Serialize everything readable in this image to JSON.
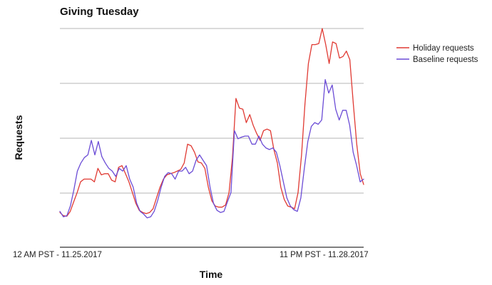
{
  "chart_data": {
    "type": "line",
    "title": "Giving Tuesday",
    "xlabel": "Time",
    "ylabel": "Requests",
    "x_tick_labels": [
      "12 AM PST - 11.25.2017",
      "11 PM PST - 11.28.2017"
    ],
    "grid": true,
    "grid_lines": 4,
    "legend_position": "right",
    "y_range": [
      0,
      4
    ],
    "series": [
      {
        "name": "Holiday requests",
        "color": "#e03a33",
        "values": [
          0.58,
          0.52,
          0.51,
          0.6,
          0.78,
          0.95,
          1.15,
          1.2,
          1.2,
          1.2,
          1.15,
          1.4,
          1.28,
          1.3,
          1.3,
          1.18,
          1.15,
          1.42,
          1.45,
          1.3,
          1.15,
          0.95,
          0.75,
          0.62,
          0.58,
          0.56,
          0.58,
          0.65,
          0.85,
          1.05,
          1.2,
          1.28,
          1.3,
          1.32,
          1.35,
          1.38,
          1.5,
          1.85,
          1.82,
          1.7,
          1.52,
          1.5,
          1.4,
          1.05,
          0.8,
          0.7,
          0.68,
          0.68,
          0.72,
          0.95,
          1.6,
          2.7,
          2.52,
          2.5,
          2.25,
          2.4,
          2.2,
          2.05,
          1.92,
          2.1,
          2.13,
          2.1,
          1.75,
          1.5,
          1.05,
          0.82,
          0.7,
          0.68,
          0.65,
          0.95,
          1.65,
          2.6,
          3.35,
          3.7,
          3.7,
          3.72,
          4.0,
          3.7,
          3.35,
          3.75,
          3.72,
          3.45,
          3.48,
          3.58,
          3.42,
          2.6,
          1.85,
          1.3,
          1.1
        ]
      },
      {
        "name": "Baseline requests",
        "color": "#6b4cd6",
        "values": [
          0.6,
          0.5,
          0.52,
          0.7,
          1.0,
          1.35,
          1.5,
          1.6,
          1.65,
          1.92,
          1.65,
          1.9,
          1.62,
          1.5,
          1.4,
          1.35,
          1.25,
          1.4,
          1.35,
          1.45,
          1.2,
          1.05,
          0.75,
          0.6,
          0.55,
          0.48,
          0.5,
          0.6,
          0.8,
          1.05,
          1.25,
          1.32,
          1.3,
          1.2,
          1.35,
          1.35,
          1.42,
          1.3,
          1.35,
          1.55,
          1.65,
          1.55,
          1.45,
          1.05,
          0.75,
          0.62,
          0.58,
          0.6,
          0.78,
          0.95,
          2.1,
          1.95,
          1.98,
          2.0,
          2.0,
          1.85,
          1.85,
          2.0,
          1.85,
          1.78,
          1.75,
          1.78,
          1.7,
          1.45,
          1.15,
          0.85,
          0.7,
          0.63,
          0.6,
          0.85,
          1.4,
          1.9,
          2.18,
          2.25,
          2.22,
          2.3,
          3.05,
          2.8,
          2.95,
          2.5,
          2.3,
          2.48,
          2.48,
          2.2,
          1.7,
          1.45,
          1.15,
          1.2
        ]
      }
    ]
  }
}
